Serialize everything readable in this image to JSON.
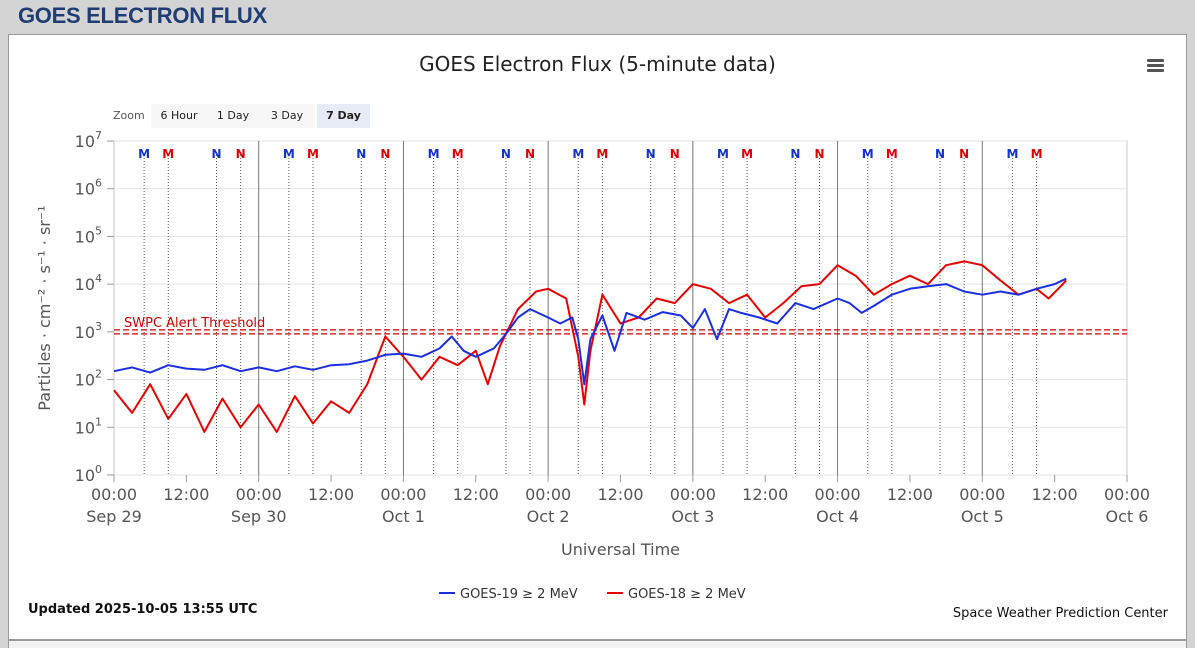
{
  "header": {
    "title": "GOES ELECTRON FLUX"
  },
  "zoom": {
    "label": "Zoom",
    "buttons": [
      {
        "label": "6 Hour",
        "active": false
      },
      {
        "label": "1 Day",
        "active": false
      },
      {
        "label": "3 Day",
        "active": false
      },
      {
        "label": "7 Day",
        "active": true
      }
    ]
  },
  "footer": {
    "updated": "Updated 2025-10-05 13:55 UTC",
    "credit": "Space Weather Prediction Center"
  },
  "menu_icon": "hamburger-menu-icon",
  "chart_data": {
    "type": "line",
    "title": "GOES Electron Flux (5-minute data)",
    "xlabel": "Universal Time",
    "ylabel": "Particles · cm⁻² · s⁻¹ · sr⁻¹",
    "y_scale": "log",
    "ylim": [
      1,
      10000000
    ],
    "y_ticks": [
      {
        "base": "10",
        "exp": "0"
      },
      {
        "base": "10",
        "exp": "1"
      },
      {
        "base": "10",
        "exp": "2"
      },
      {
        "base": "10",
        "exp": "3"
      },
      {
        "base": "10",
        "exp": "4"
      },
      {
        "base": "10",
        "exp": "5"
      },
      {
        "base": "10",
        "exp": "6"
      },
      {
        "base": "10",
        "exp": "7"
      }
    ],
    "xlim": [
      "2025-09-29 00:00",
      "2025-10-06 00:00"
    ],
    "x_ticks": [
      {
        "time": "00:00",
        "date": "Sep 29"
      },
      {
        "time": "12:00",
        "date": ""
      },
      {
        "time": "00:00",
        "date": "Sep 30"
      },
      {
        "time": "12:00",
        "date": ""
      },
      {
        "time": "00:00",
        "date": "Oct 1"
      },
      {
        "time": "12:00",
        "date": ""
      },
      {
        "time": "00:00",
        "date": "Oct 2"
      },
      {
        "time": "12:00",
        "date": ""
      },
      {
        "time": "00:00",
        "date": "Oct 3"
      },
      {
        "time": "12:00",
        "date": ""
      },
      {
        "time": "00:00",
        "date": "Oct 4"
      },
      {
        "time": "12:00",
        "date": ""
      },
      {
        "time": "00:00",
        "date": "Oct 5"
      },
      {
        "time": "12:00",
        "date": ""
      },
      {
        "time": "00:00",
        "date": "Oct 6"
      }
    ],
    "grid": true,
    "legend_position": "bottom-center",
    "threshold": {
      "label": "SWPC Alert Threshold",
      "value": 1000,
      "color": "#cc0000"
    },
    "event_markers": [
      {
        "label": "M",
        "color": "#1133cc",
        "x": "2025-09-29 05:00"
      },
      {
        "label": "M",
        "color": "#dd0000",
        "x": "2025-09-29 09:00"
      },
      {
        "label": "N",
        "color": "#1133cc",
        "x": "2025-09-29 17:00"
      },
      {
        "label": "N",
        "color": "#dd0000",
        "x": "2025-09-29 21:00"
      },
      {
        "label": "M",
        "color": "#1133cc",
        "x": "2025-09-30 05:00"
      },
      {
        "label": "M",
        "color": "#dd0000",
        "x": "2025-09-30 09:00"
      },
      {
        "label": "N",
        "color": "#1133cc",
        "x": "2025-09-30 17:00"
      },
      {
        "label": "N",
        "color": "#dd0000",
        "x": "2025-09-30 21:00"
      },
      {
        "label": "M",
        "color": "#1133cc",
        "x": "2025-10-01 05:00"
      },
      {
        "label": "M",
        "color": "#dd0000",
        "x": "2025-10-01 09:00"
      },
      {
        "label": "N",
        "color": "#1133cc",
        "x": "2025-10-01 17:00"
      },
      {
        "label": "N",
        "color": "#dd0000",
        "x": "2025-10-01 21:00"
      },
      {
        "label": "M",
        "color": "#1133cc",
        "x": "2025-10-02 05:00"
      },
      {
        "label": "M",
        "color": "#dd0000",
        "x": "2025-10-02 09:00"
      },
      {
        "label": "N",
        "color": "#1133cc",
        "x": "2025-10-02 17:00"
      },
      {
        "label": "N",
        "color": "#dd0000",
        "x": "2025-10-02 21:00"
      },
      {
        "label": "M",
        "color": "#1133cc",
        "x": "2025-10-03 05:00"
      },
      {
        "label": "M",
        "color": "#dd0000",
        "x": "2025-10-03 09:00"
      },
      {
        "label": "N",
        "color": "#1133cc",
        "x": "2025-10-03 17:00"
      },
      {
        "label": "N",
        "color": "#dd0000",
        "x": "2025-10-03 21:00"
      },
      {
        "label": "M",
        "color": "#1133cc",
        "x": "2025-10-04 05:00"
      },
      {
        "label": "M",
        "color": "#dd0000",
        "x": "2025-10-04 09:00"
      },
      {
        "label": "N",
        "color": "#1133cc",
        "x": "2025-10-04 17:00"
      },
      {
        "label": "N",
        "color": "#dd0000",
        "x": "2025-10-04 21:00"
      },
      {
        "label": "M",
        "color": "#1133cc",
        "x": "2025-10-05 05:00"
      },
      {
        "label": "M",
        "color": "#dd0000",
        "x": "2025-10-05 09:00"
      }
    ],
    "series": [
      {
        "name": "GOES-19 ≥ 2 MeV",
        "color": "#1a2fe0",
        "points": [
          [
            "2025-09-29 00:00",
            150
          ],
          [
            "2025-09-29 03:00",
            180
          ],
          [
            "2025-09-29 06:00",
            140
          ],
          [
            "2025-09-29 09:00",
            200
          ],
          [
            "2025-09-29 12:00",
            170
          ],
          [
            "2025-09-29 15:00",
            160
          ],
          [
            "2025-09-29 18:00",
            200
          ],
          [
            "2025-09-29 21:00",
            150
          ],
          [
            "2025-09-30 00:00",
            180
          ],
          [
            "2025-09-30 03:00",
            150
          ],
          [
            "2025-09-30 06:00",
            190
          ],
          [
            "2025-09-30 09:00",
            160
          ],
          [
            "2025-09-30 12:00",
            200
          ],
          [
            "2025-09-30 15:00",
            210
          ],
          [
            "2025-09-30 18:00",
            250
          ],
          [
            "2025-09-30 21:00",
            330
          ],
          [
            "2025-10-01 00:00",
            350
          ],
          [
            "2025-10-01 03:00",
            300
          ],
          [
            "2025-10-01 06:00",
            450
          ],
          [
            "2025-10-01 08:00",
            800
          ],
          [
            "2025-10-01 10:00",
            400
          ],
          [
            "2025-10-01 12:00",
            300
          ],
          [
            "2025-10-01 15:00",
            450
          ],
          [
            "2025-10-01 17:00",
            900
          ],
          [
            "2025-10-01 19:00",
            2000
          ],
          [
            "2025-10-01 21:00",
            3000
          ],
          [
            "2025-10-02 00:00",
            2000
          ],
          [
            "2025-10-02 02:00",
            1500
          ],
          [
            "2025-10-02 04:00",
            2000
          ],
          [
            "2025-10-02 05:00",
            700
          ],
          [
            "2025-10-02 06:00",
            80
          ],
          [
            "2025-10-02 07:00",
            700
          ],
          [
            "2025-10-02 09:00",
            2200
          ],
          [
            "2025-10-02 11:00",
            400
          ],
          [
            "2025-10-02 13:00",
            2500
          ],
          [
            "2025-10-02 16:00",
            1800
          ],
          [
            "2025-10-02 19:00",
            2600
          ],
          [
            "2025-10-02 22:00",
            2200
          ],
          [
            "2025-10-03 00:00",
            1200
          ],
          [
            "2025-10-03 02:00",
            3000
          ],
          [
            "2025-10-03 04:00",
            700
          ],
          [
            "2025-10-03 06:00",
            3000
          ],
          [
            "2025-10-03 08:00",
            2500
          ],
          [
            "2025-10-03 11:00",
            2000
          ],
          [
            "2025-10-03 14:00",
            1500
          ],
          [
            "2025-10-03 17:00",
            4000
          ],
          [
            "2025-10-03 20:00",
            3000
          ],
          [
            "2025-10-04 00:00",
            5000
          ],
          [
            "2025-10-04 02:00",
            4000
          ],
          [
            "2025-10-04 04:00",
            2500
          ],
          [
            "2025-10-04 06:00",
            3500
          ],
          [
            "2025-10-04 09:00",
            6000
          ],
          [
            "2025-10-04 12:00",
            8000
          ],
          [
            "2025-10-04 15:00",
            9000
          ],
          [
            "2025-10-04 18:00",
            10000
          ],
          [
            "2025-10-04 21:00",
            7000
          ],
          [
            "2025-10-05 00:00",
            6000
          ],
          [
            "2025-10-05 03:00",
            7000
          ],
          [
            "2025-10-05 06:00",
            6000
          ],
          [
            "2025-10-05 09:00",
            8000
          ],
          [
            "2025-10-05 12:00",
            10000
          ],
          [
            "2025-10-05 13:55",
            13000
          ]
        ]
      },
      {
        "name": "GOES-18 ≥ 2 MeV",
        "color": "#e60000",
        "points": [
          [
            "2025-09-29 00:00",
            60
          ],
          [
            "2025-09-29 03:00",
            20
          ],
          [
            "2025-09-29 06:00",
            80
          ],
          [
            "2025-09-29 09:00",
            15
          ],
          [
            "2025-09-29 12:00",
            50
          ],
          [
            "2025-09-29 15:00",
            8
          ],
          [
            "2025-09-29 18:00",
            40
          ],
          [
            "2025-09-29 21:00",
            10
          ],
          [
            "2025-09-30 00:00",
            30
          ],
          [
            "2025-09-30 03:00",
            8
          ],
          [
            "2025-09-30 06:00",
            45
          ],
          [
            "2025-09-30 09:00",
            12
          ],
          [
            "2025-09-30 12:00",
            35
          ],
          [
            "2025-09-30 15:00",
            20
          ],
          [
            "2025-09-30 18:00",
            80
          ],
          [
            "2025-09-30 21:00",
            800
          ],
          [
            "2025-10-01 00:00",
            300
          ],
          [
            "2025-10-01 03:00",
            100
          ],
          [
            "2025-10-01 06:00",
            300
          ],
          [
            "2025-10-01 09:00",
            200
          ],
          [
            "2025-10-01 12:00",
            400
          ],
          [
            "2025-10-01 14:00",
            80
          ],
          [
            "2025-10-01 16:00",
            500
          ],
          [
            "2025-10-01 19:00",
            3000
          ],
          [
            "2025-10-01 22:00",
            7000
          ],
          [
            "2025-10-02 00:00",
            8000
          ],
          [
            "2025-10-02 03:00",
            5000
          ],
          [
            "2025-10-02 05:00",
            300
          ],
          [
            "2025-10-02 06:00",
            30
          ],
          [
            "2025-10-02 07:00",
            400
          ],
          [
            "2025-10-02 09:00",
            6000
          ],
          [
            "2025-10-02 12:00",
            1500
          ],
          [
            "2025-10-02 15:00",
            2000
          ],
          [
            "2025-10-02 18:00",
            5000
          ],
          [
            "2025-10-02 21:00",
            4000
          ],
          [
            "2025-10-03 00:00",
            10000
          ],
          [
            "2025-10-03 03:00",
            8000
          ],
          [
            "2025-10-03 06:00",
            4000
          ],
          [
            "2025-10-03 09:00",
            6000
          ],
          [
            "2025-10-03 12:00",
            2000
          ],
          [
            "2025-10-03 15:00",
            4000
          ],
          [
            "2025-10-03 18:00",
            9000
          ],
          [
            "2025-10-03 21:00",
            10000
          ],
          [
            "2025-10-04 00:00",
            25000
          ],
          [
            "2025-10-04 03:00",
            15000
          ],
          [
            "2025-10-04 06:00",
            6000
          ],
          [
            "2025-10-04 09:00",
            10000
          ],
          [
            "2025-10-04 12:00",
            15000
          ],
          [
            "2025-10-04 15:00",
            10000
          ],
          [
            "2025-10-04 18:00",
            25000
          ],
          [
            "2025-10-04 21:00",
            30000
          ],
          [
            "2025-10-05 00:00",
            25000
          ],
          [
            "2025-10-05 03:00",
            12000
          ],
          [
            "2025-10-05 06:00",
            6000
          ],
          [
            "2025-10-05 09:00",
            8000
          ],
          [
            "2025-10-05 11:00",
            5000
          ],
          [
            "2025-10-05 13:00",
            9000
          ],
          [
            "2025-10-05 13:55",
            12000
          ]
        ]
      }
    ]
  }
}
